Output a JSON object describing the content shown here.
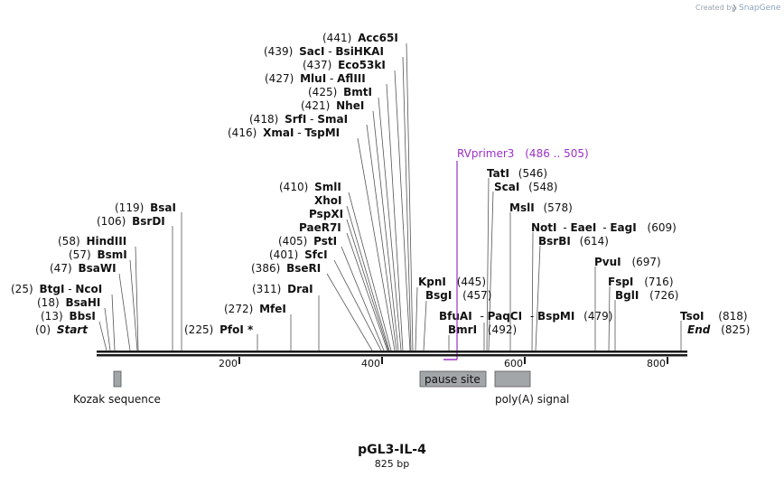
{
  "credit": {
    "text": "Created by",
    "brand": "SnapGene"
  },
  "title": "pGL3-IL-4",
  "subtitle": "825 bp",
  "sites": [
    {
      "name": "Acc65I",
      "pos": "(441)"
    },
    {
      "name": "SacI",
      "pos": "(439)",
      "extra": "BsiHKAI"
    },
    {
      "name": "Eco53kI",
      "pos": "(437)"
    },
    {
      "name": "MluI",
      "pos": "(427)",
      "extra": "AflIII"
    },
    {
      "name": "BmtI",
      "pos": "(425)"
    },
    {
      "name": "NheI",
      "pos": "(421)"
    },
    {
      "name": "SrfI",
      "pos": "(418)",
      "extra": "SmaI"
    },
    {
      "name": "XmaI",
      "pos": "(416)",
      "extra": "TspMI"
    },
    {
      "name": "SmlI",
      "pos": "(410)"
    },
    {
      "name": "XhoI",
      "pos": ""
    },
    {
      "name": "PspXI",
      "pos": ""
    },
    {
      "name": "PaeR7I",
      "pos": ""
    },
    {
      "name": "PstI",
      "pos": "(405)"
    },
    {
      "name": "SfcI",
      "pos": "(401)"
    },
    {
      "name": "BseRI",
      "pos": "(386)"
    },
    {
      "name": "DraI",
      "pos": "(311)"
    },
    {
      "name": "MfeI",
      "pos": "(272)"
    },
    {
      "name": "PfoI *",
      "pos": "(225)"
    },
    {
      "name": "BsaI",
      "pos": "(119)"
    },
    {
      "name": "BsrDI",
      "pos": "(106)"
    },
    {
      "name": "HindIII",
      "pos": "(58)"
    },
    {
      "name": "BsmI",
      "pos": "(57)"
    },
    {
      "name": "BsaWI",
      "pos": "(47)"
    },
    {
      "name": "BtgI",
      "pos": "(25)",
      "extra": "NcoI"
    },
    {
      "name": "BsaHI",
      "pos": "(18)"
    },
    {
      "name": "BbsI",
      "pos": "(13)"
    },
    {
      "name": "Start",
      "pos": "(0)"
    },
    {
      "name": "KpnI",
      "pos": "(445)"
    },
    {
      "name": "BsgI",
      "pos": "(457)"
    },
    {
      "name": "BfuAI",
      "pos": "",
      "extra": "PaqCI",
      "extra2": "BspMI",
      "extra2pos": "(479)"
    },
    {
      "name": "BmrI",
      "pos": "(492)"
    },
    {
      "name": "TatI",
      "pos": "(546)"
    },
    {
      "name": "ScaI",
      "pos": "(548)"
    },
    {
      "name": "MslI",
      "pos": "(578)"
    },
    {
      "name": "NotI",
      "pos": "(609)",
      "extra": "EaeI",
      "extra2": "EagI"
    },
    {
      "name": "BsrBI",
      "pos": "(614)"
    },
    {
      "name": "PvuI",
      "pos": "(697)"
    },
    {
      "name": "FspI",
      "pos": "(716)"
    },
    {
      "name": "BglI",
      "pos": "(726)"
    },
    {
      "name": "TsoI",
      "pos": "(818)"
    },
    {
      "name": "End",
      "pos": "(825)"
    }
  ],
  "primer": {
    "name": "RVprimer3",
    "range": "(486 .. 505)"
  },
  "features": [
    {
      "name": "Kozak sequence"
    },
    {
      "name": "pause site"
    },
    {
      "name": "poly(A) signal"
    }
  ],
  "ticks": [
    "200",
    "400",
    "600",
    "800"
  ]
}
